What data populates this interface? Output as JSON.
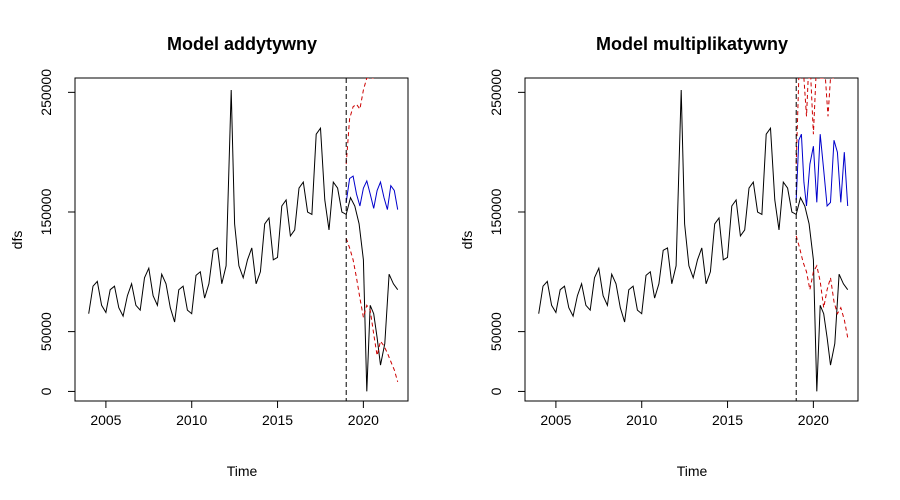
{
  "chart_data": [
    {
      "type": "line",
      "title": "Model addytywny",
      "xlabel": "Time",
      "ylabel": "dfs",
      "xlim": [
        2003.2,
        2022.6
      ],
      "ylim": [
        -8000,
        262000
      ],
      "xticks": [
        2005,
        2010,
        2015,
        2020
      ],
      "xtick_labels": [
        "2005",
        "2010",
        "2015",
        "2020"
      ],
      "yticks": [
        0,
        50000,
        150000,
        250000
      ],
      "ytick_labels": [
        "0",
        "50000",
        "150000",
        "250000"
      ],
      "vline": 2019.0,
      "series": [
        {
          "color": "#000000",
          "dash": "solid",
          "x": [
            2004.0,
            2004.25,
            2004.5,
            2004.75,
            2005.0,
            2005.25,
            2005.5,
            2005.75,
            2006.0,
            2006.25,
            2006.5,
            2006.75,
            2007.0,
            2007.25,
            2007.5,
            2007.75,
            2008.0,
            2008.25,
            2008.5,
            2008.75,
            2009.0,
            2009.25,
            2009.5,
            2009.75,
            2010.0,
            2010.25,
            2010.5,
            2010.75,
            2011.0,
            2011.25,
            2011.5,
            2011.75,
            2012.0,
            2012.3,
            2012.5,
            2012.75,
            2013.0,
            2013.25,
            2013.5,
            2013.75,
            2014.0,
            2014.25,
            2014.5,
            2014.75,
            2015.0,
            2015.25,
            2015.5,
            2015.75,
            2016.0,
            2016.25,
            2016.5,
            2016.75,
            2017.0,
            2017.25,
            2017.5,
            2017.75,
            2018.0,
            2018.25,
            2018.5,
            2018.75,
            2019.0,
            2019.25,
            2019.5,
            2019.75,
            2020.0,
            2020.2,
            2020.4,
            2020.6,
            2020.8,
            2021.0,
            2021.25,
            2021.5,
            2021.75,
            2022.0
          ],
          "y": [
            65000,
            88000,
            92000,
            72000,
            66000,
            85000,
            88000,
            70000,
            63000,
            80000,
            90000,
            72000,
            68000,
            95000,
            103000,
            80000,
            72000,
            98000,
            90000,
            70000,
            58000,
            85000,
            88000,
            68000,
            65000,
            97000,
            100000,
            78000,
            90000,
            118000,
            120000,
            90000,
            105000,
            252000,
            140000,
            105000,
            95000,
            110000,
            120000,
            90000,
            100000,
            140000,
            145000,
            110000,
            112000,
            155000,
            160000,
            130000,
            135000,
            170000,
            175000,
            150000,
            148000,
            215000,
            220000,
            160000,
            135000,
            175000,
            170000,
            150000,
            148000,
            162000,
            155000,
            140000,
            110000,
            0,
            72000,
            65000,
            45000,
            22000,
            40000,
            98000,
            90000,
            85000
          ]
        },
        {
          "color": "#0000CC",
          "dash": "solid",
          "x": [
            2019.0,
            2019.2,
            2019.4,
            2019.6,
            2019.8,
            2020.0,
            2020.2,
            2020.4,
            2020.6,
            2020.8,
            2021.0,
            2021.2,
            2021.4,
            2021.6,
            2021.8,
            2022.0
          ],
          "y": [
            158000,
            178000,
            180000,
            165000,
            155000,
            170000,
            176000,
            165000,
            153000,
            168000,
            175000,
            162000,
            152000,
            172000,
            168000,
            152000
          ]
        },
        {
          "color": "#CC0000",
          "dash": "dashed",
          "x": [
            2019.0,
            2019.2,
            2019.4,
            2019.6,
            2019.8,
            2020.0,
            2020.2,
            2020.4,
            2020.6
          ],
          "y": [
            190000,
            228000,
            238000,
            240000,
            236000,
            252000,
            262000,
            262000,
            262000
          ]
        },
        {
          "color": "#CC0000",
          "dash": "dashed",
          "x": [
            2019.0,
            2019.2,
            2019.4,
            2019.6,
            2019.8,
            2020.0,
            2020.2,
            2020.4,
            2020.6,
            2020.8,
            2021.0,
            2021.2,
            2021.4,
            2021.6,
            2021.8,
            2022.0
          ],
          "y": [
            128000,
            120000,
            110000,
            95000,
            78000,
            62000,
            72000,
            68000,
            48000,
            30000,
            42000,
            38000,
            32000,
            25000,
            18000,
            8000
          ]
        }
      ]
    },
    {
      "type": "line",
      "title": "Model multiplikatywny",
      "xlabel": "Time",
      "ylabel": "dfs",
      "xlim": [
        2003.2,
        2022.6
      ],
      "ylim": [
        -8000,
        262000
      ],
      "xticks": [
        2005,
        2010,
        2015,
        2020
      ],
      "xtick_labels": [
        "2005",
        "2010",
        "2015",
        "2020"
      ],
      "yticks": [
        0,
        50000,
        150000,
        250000
      ],
      "ytick_labels": [
        "0",
        "50000",
        "150000",
        "250000"
      ],
      "vline": 2019.0,
      "series": [
        {
          "color": "#000000",
          "dash": "solid",
          "x": [
            2004.0,
            2004.25,
            2004.5,
            2004.75,
            2005.0,
            2005.25,
            2005.5,
            2005.75,
            2006.0,
            2006.25,
            2006.5,
            2006.75,
            2007.0,
            2007.25,
            2007.5,
            2007.75,
            2008.0,
            2008.25,
            2008.5,
            2008.75,
            2009.0,
            2009.25,
            2009.5,
            2009.75,
            2010.0,
            2010.25,
            2010.5,
            2010.75,
            2011.0,
            2011.25,
            2011.5,
            2011.75,
            2012.0,
            2012.3,
            2012.5,
            2012.75,
            2013.0,
            2013.25,
            2013.5,
            2013.75,
            2014.0,
            2014.25,
            2014.5,
            2014.75,
            2015.0,
            2015.25,
            2015.5,
            2015.75,
            2016.0,
            2016.25,
            2016.5,
            2016.75,
            2017.0,
            2017.25,
            2017.5,
            2017.75,
            2018.0,
            2018.25,
            2018.5,
            2018.75,
            2019.0,
            2019.25,
            2019.5,
            2019.75,
            2020.0,
            2020.2,
            2020.4,
            2020.6,
            2020.8,
            2021.0,
            2021.25,
            2021.5,
            2021.75,
            2022.0
          ],
          "y": [
            65000,
            88000,
            92000,
            72000,
            66000,
            85000,
            88000,
            70000,
            63000,
            80000,
            90000,
            72000,
            68000,
            95000,
            103000,
            80000,
            72000,
            98000,
            90000,
            70000,
            58000,
            85000,
            88000,
            68000,
            65000,
            97000,
            100000,
            78000,
            90000,
            118000,
            120000,
            90000,
            105000,
            252000,
            140000,
            105000,
            95000,
            110000,
            120000,
            90000,
            100000,
            140000,
            145000,
            110000,
            112000,
            155000,
            160000,
            130000,
            135000,
            170000,
            175000,
            150000,
            148000,
            215000,
            220000,
            160000,
            135000,
            175000,
            170000,
            150000,
            148000,
            162000,
            155000,
            140000,
            110000,
            0,
            72000,
            65000,
            45000,
            22000,
            40000,
            98000,
            90000,
            85000
          ]
        },
        {
          "color": "#0000CC",
          "dash": "solid",
          "x": [
            2019.0,
            2019.15,
            2019.3,
            2019.45,
            2019.6,
            2019.8,
            2020.0,
            2020.2,
            2020.4,
            2020.6,
            2020.8,
            2021.0,
            2021.2,
            2021.4,
            2021.6,
            2021.8,
            2022.0
          ],
          "y": [
            160000,
            210000,
            215000,
            175000,
            155000,
            190000,
            205000,
            158000,
            215000,
            185000,
            155000,
            158000,
            210000,
            200000,
            158000,
            200000,
            155000
          ],
          "_x_note": ""
        },
        {
          "color": "#CC0000",
          "dash": "dashed",
          "x": [
            2019.0,
            2019.15,
            2019.3,
            2019.45,
            2019.6,
            2019.7,
            2019.85,
            2020.0,
            2020.15,
            2020.3,
            2020.5,
            2020.7,
            2020.85,
            2021.0,
            2021.2
          ],
          "y": [
            190000,
            262000,
            262000,
            262000,
            230000,
            262000,
            262000,
            215000,
            262000,
            262000,
            262000,
            262000,
            230000,
            262000,
            262000
          ]
        },
        {
          "color": "#CC0000",
          "dash": "dashed",
          "x": [
            2019.0,
            2019.2,
            2019.4,
            2019.6,
            2019.8,
            2020.0,
            2020.2,
            2020.4,
            2020.6,
            2020.8,
            2021.0,
            2021.2,
            2021.4,
            2021.6,
            2021.8,
            2022.0
          ],
          "y": [
            130000,
            120000,
            108000,
            100000,
            85000,
            100000,
            105000,
            92000,
            70000,
            85000,
            95000,
            75000,
            65000,
            70000,
            60000,
            45000
          ]
        }
      ]
    }
  ]
}
